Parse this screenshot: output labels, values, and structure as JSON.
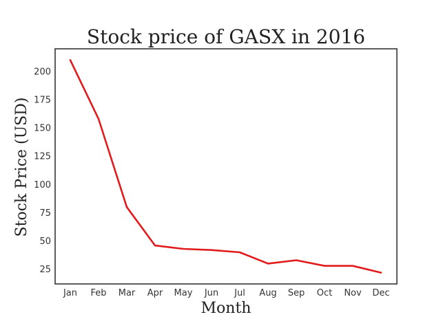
{
  "chart_data": {
    "type": "line",
    "title": "Stock price of GASX in 2016",
    "xlabel": "Month",
    "ylabel": "Stock Price (USD)",
    "categories": [
      "Jan",
      "Feb",
      "Mar",
      "Apr",
      "May",
      "Jun",
      "Jul",
      "Aug",
      "Sep",
      "Oct",
      "Nov",
      "Dec"
    ],
    "series": [
      {
        "values": [
          210,
          158,
          80,
          46,
          43,
          42,
          40,
          30,
          33,
          28,
          28,
          22
        ],
        "color": "#e31a1c"
      }
    ],
    "yticks": [
      25,
      50,
      75,
      100,
      125,
      150,
      175,
      200
    ],
    "ylim": [
      12,
      220
    ],
    "grid": false,
    "legend": "none"
  }
}
